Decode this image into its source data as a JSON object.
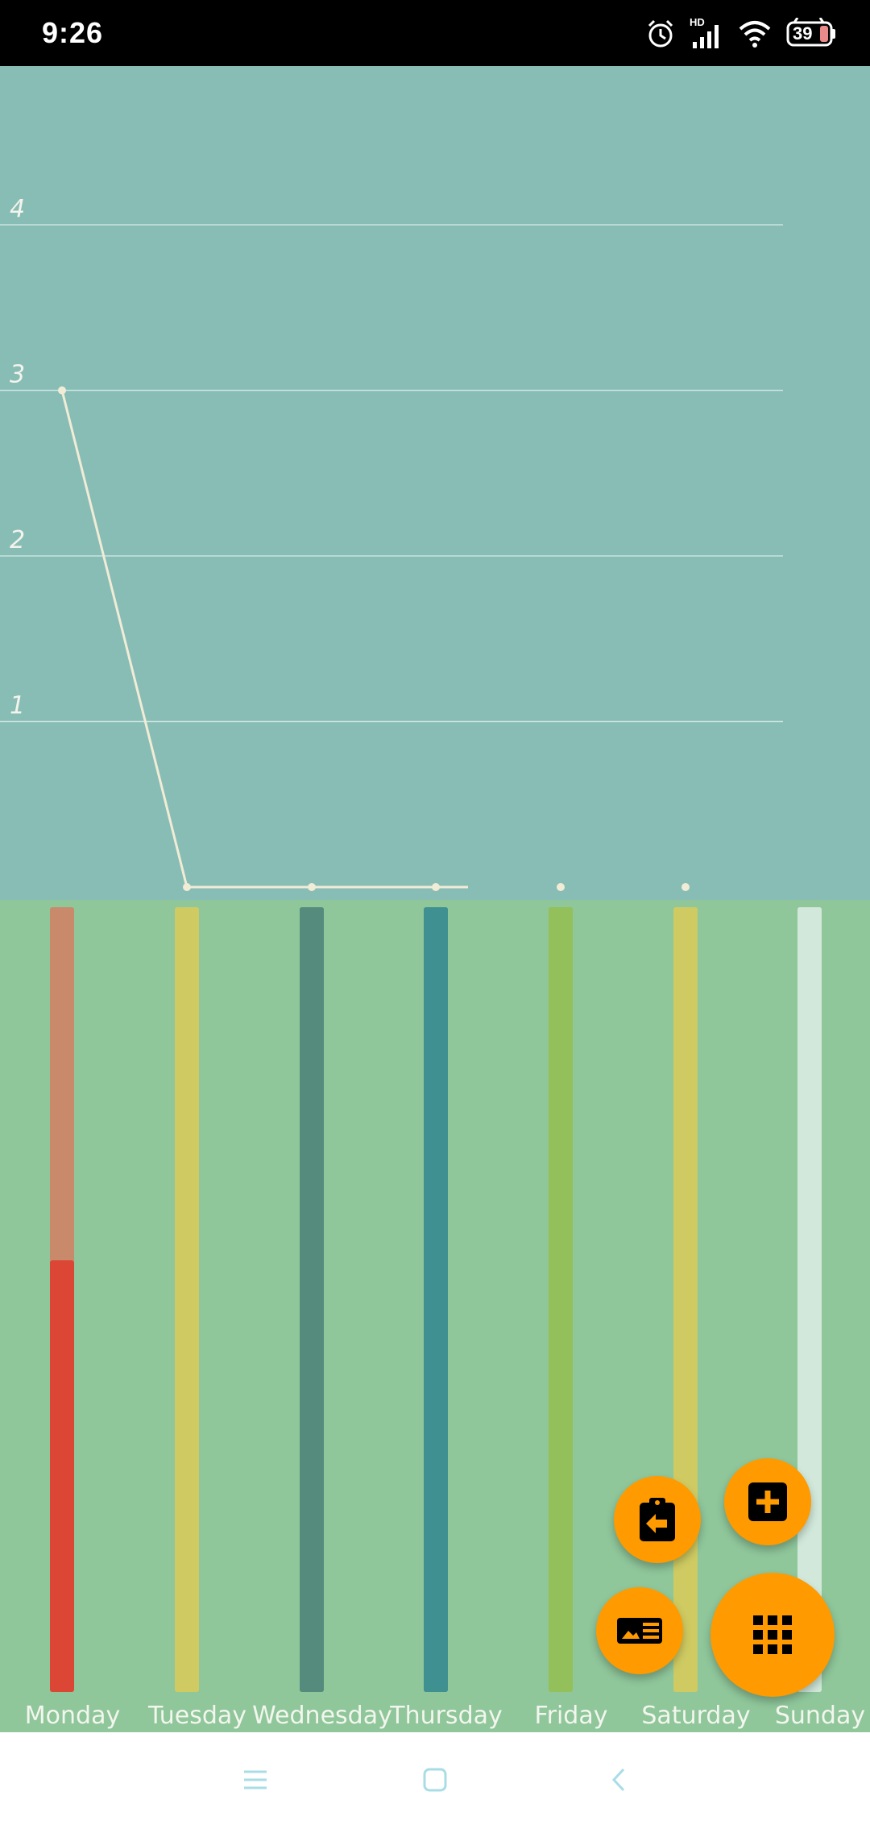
{
  "status_bar": {
    "time": "9:26",
    "network_label": "HD",
    "battery_level": "39",
    "icons": [
      "alarm-icon",
      "signal-icon",
      "wifi-icon",
      "battery-icon"
    ]
  },
  "chart_data": [
    {
      "type": "line",
      "x": [
        "Monday",
        "Tuesday",
        "Wednesday",
        "Thursday",
        "Friday",
        "Saturday",
        "Sunday"
      ],
      "series": [
        {
          "values": [
            3,
            0,
            0,
            0,
            null,
            null,
            null
          ]
        }
      ],
      "extra_points": [
        {
          "x": "Friday",
          "y": 0
        },
        {
          "x": "Saturday",
          "y": 0
        }
      ],
      "yticks": [
        "1",
        "2",
        "3",
        "4"
      ],
      "ylim": [
        0,
        4.4
      ],
      "grid": true,
      "colors": {
        "background": "#88bdb5",
        "line": "#f1ecd6",
        "grid": "#c9e3df",
        "tick_text": "#f3f4ec"
      }
    },
    {
      "type": "bar",
      "categories": [
        "Monday",
        "Tuesday",
        "Wednesday",
        "Thursday",
        "Friday",
        "Saturday",
        "Sunday"
      ],
      "values": [
        0.55,
        1,
        1,
        1,
        1,
        1,
        1
      ],
      "track_colors": [
        "#c98a6b",
        "#cfcb62",
        "#558b7d",
        "#3f9090",
        "#93c05a",
        "#cfcb62",
        "#d1e8da"
      ],
      "fill_colors": [
        "#db4635",
        "#cfcb62",
        "#558b7d",
        "#3f9090",
        "#93c05a",
        "#cfcb62",
        "#d1e8da"
      ],
      "colors": {
        "background": "#8fc69a",
        "label_text": "#f3f6ee"
      }
    }
  ],
  "fab_menu": {
    "accent": "#ff9a00",
    "buttons": [
      {
        "name": "clipboard-back-button",
        "icon": "clipboard-back-icon"
      },
      {
        "name": "add-button",
        "icon": "add-box-icon"
      },
      {
        "name": "card-list-button",
        "icon": "image-list-icon"
      },
      {
        "name": "apps-grid-button",
        "icon": "grid-icon"
      }
    ]
  },
  "nav_bar": {
    "icons": [
      "menu-icon",
      "home-icon",
      "back-icon"
    ],
    "color": "#a9dde6"
  }
}
